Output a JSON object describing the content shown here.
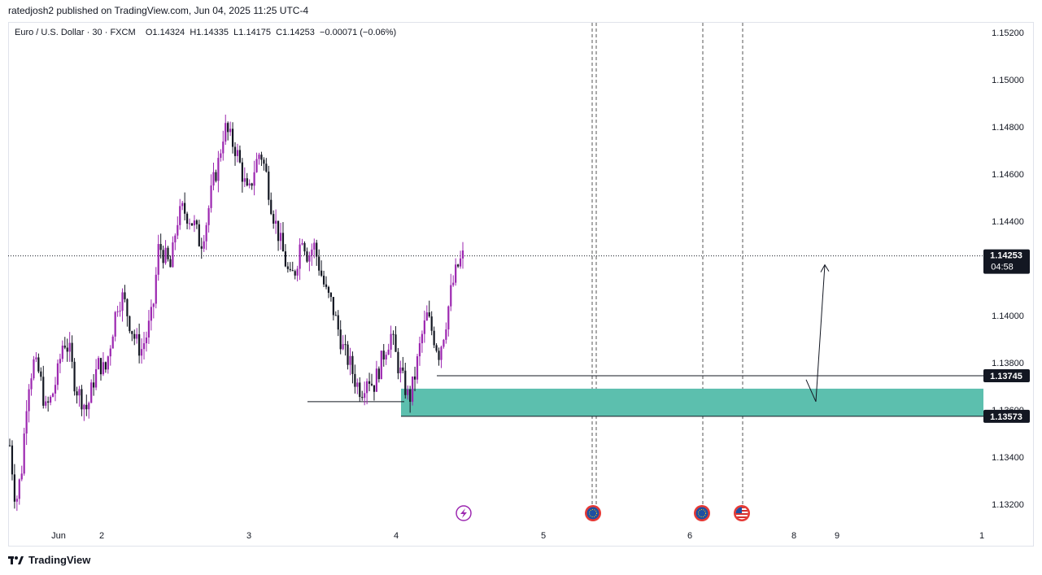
{
  "header": {
    "published_text": "ratedjosh2 published on TradingView.com, Jun 04, 2025 11:25 UTC-4"
  },
  "symbol": {
    "name": "Euro / U.S. Dollar",
    "interval": "30",
    "exchange": "FXCM",
    "open": "O1.14324",
    "high": "H1.14335",
    "low": "L1.14175",
    "close": "C1.14253",
    "change": "−0.00071 (−0.06%)"
  },
  "price_labels": {
    "current_price": "1.14253",
    "countdown": "04:58",
    "level_upper": "1.13745",
    "level_lower": "1.13573"
  },
  "footer": {
    "brand": "TradingView",
    "logo_icon": "tradingview-logo-icon"
  },
  "colors": {
    "bull": "#9c27b0",
    "bear": "#131722",
    "zone": "#5cbfae",
    "axis_text": "#131722"
  },
  "chart_data": {
    "type": "candlestick",
    "title": "Euro / U.S. Dollar · 30 · FXCM",
    "ylim": [
      1.131,
      1.153
    ],
    "y_ticks": [
      "1.15200",
      "1.15000",
      "1.14800",
      "1.14600",
      "1.14400",
      "1.14000",
      "1.13800",
      "1.13600",
      "1.13400",
      "1.13200"
    ],
    "x_ticks": [
      "Jun",
      "2",
      "3",
      "4",
      "5",
      "6",
      "8",
      "9",
      "1"
    ],
    "current_price": 1.14253,
    "levels": [
      1.13745,
      1.13573
    ],
    "demand_zone": [
      1.13573,
      1.1369
    ],
    "swing_low_line": 1.13635,
    "projection_arrow": {
      "from": 1.13635,
      "to": 1.14215
    },
    "event_icons": [
      "lightning-icon",
      "eu-flag-icon",
      "eu-flag-icon",
      "us-flag-icon"
    ],
    "candles_close_path": [
      1.1345,
      1.132,
      1.1335,
      1.137,
      1.138,
      1.1375,
      1.136,
      1.1365,
      1.1375,
      1.139,
      1.1385,
      1.137,
      1.1365,
      1.136,
      1.1372,
      1.138,
      1.1376,
      1.139,
      1.1405,
      1.1408,
      1.1398,
      1.139,
      1.1385,
      1.1392,
      1.1402,
      1.143,
      1.1425,
      1.142,
      1.144,
      1.1445,
      1.1442,
      1.1438,
      1.143,
      1.144,
      1.1455,
      1.1465,
      1.148,
      1.1475,
      1.147,
      1.146,
      1.145,
      1.1462,
      1.147,
      1.146,
      1.1445,
      1.1435,
      1.1425,
      1.1415,
      1.142,
      1.1435,
      1.1425,
      1.143,
      1.142,
      1.141,
      1.1405,
      1.1395,
      1.1385,
      1.138,
      1.1372,
      1.1368,
      1.1375,
      1.137,
      1.1378,
      1.1386,
      1.1392,
      1.138,
      1.1372,
      1.1364,
      1.1375,
      1.139,
      1.14,
      1.1392,
      1.1384,
      1.1395,
      1.141,
      1.142,
      1.1425
    ]
  }
}
